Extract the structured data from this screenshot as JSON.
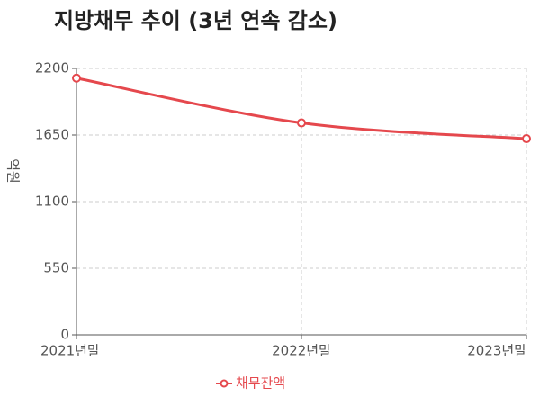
{
  "chart_data": {
    "type": "line",
    "title": "지방채무 추이 (3년 연속 감소)",
    "y_label": "억원",
    "categories": [
      "2021년말",
      "2022년말",
      "2023년말"
    ],
    "series": [
      {
        "name": "채무잔액",
        "color": "#e5484d",
        "values": [
          2120,
          1750,
          1620
        ]
      }
    ],
    "ylim": [
      0,
      2200
    ],
    "yticks": [
      0,
      550,
      1100,
      1650,
      2200
    ],
    "grid": true,
    "smooth": true,
    "legend": "bottom"
  }
}
